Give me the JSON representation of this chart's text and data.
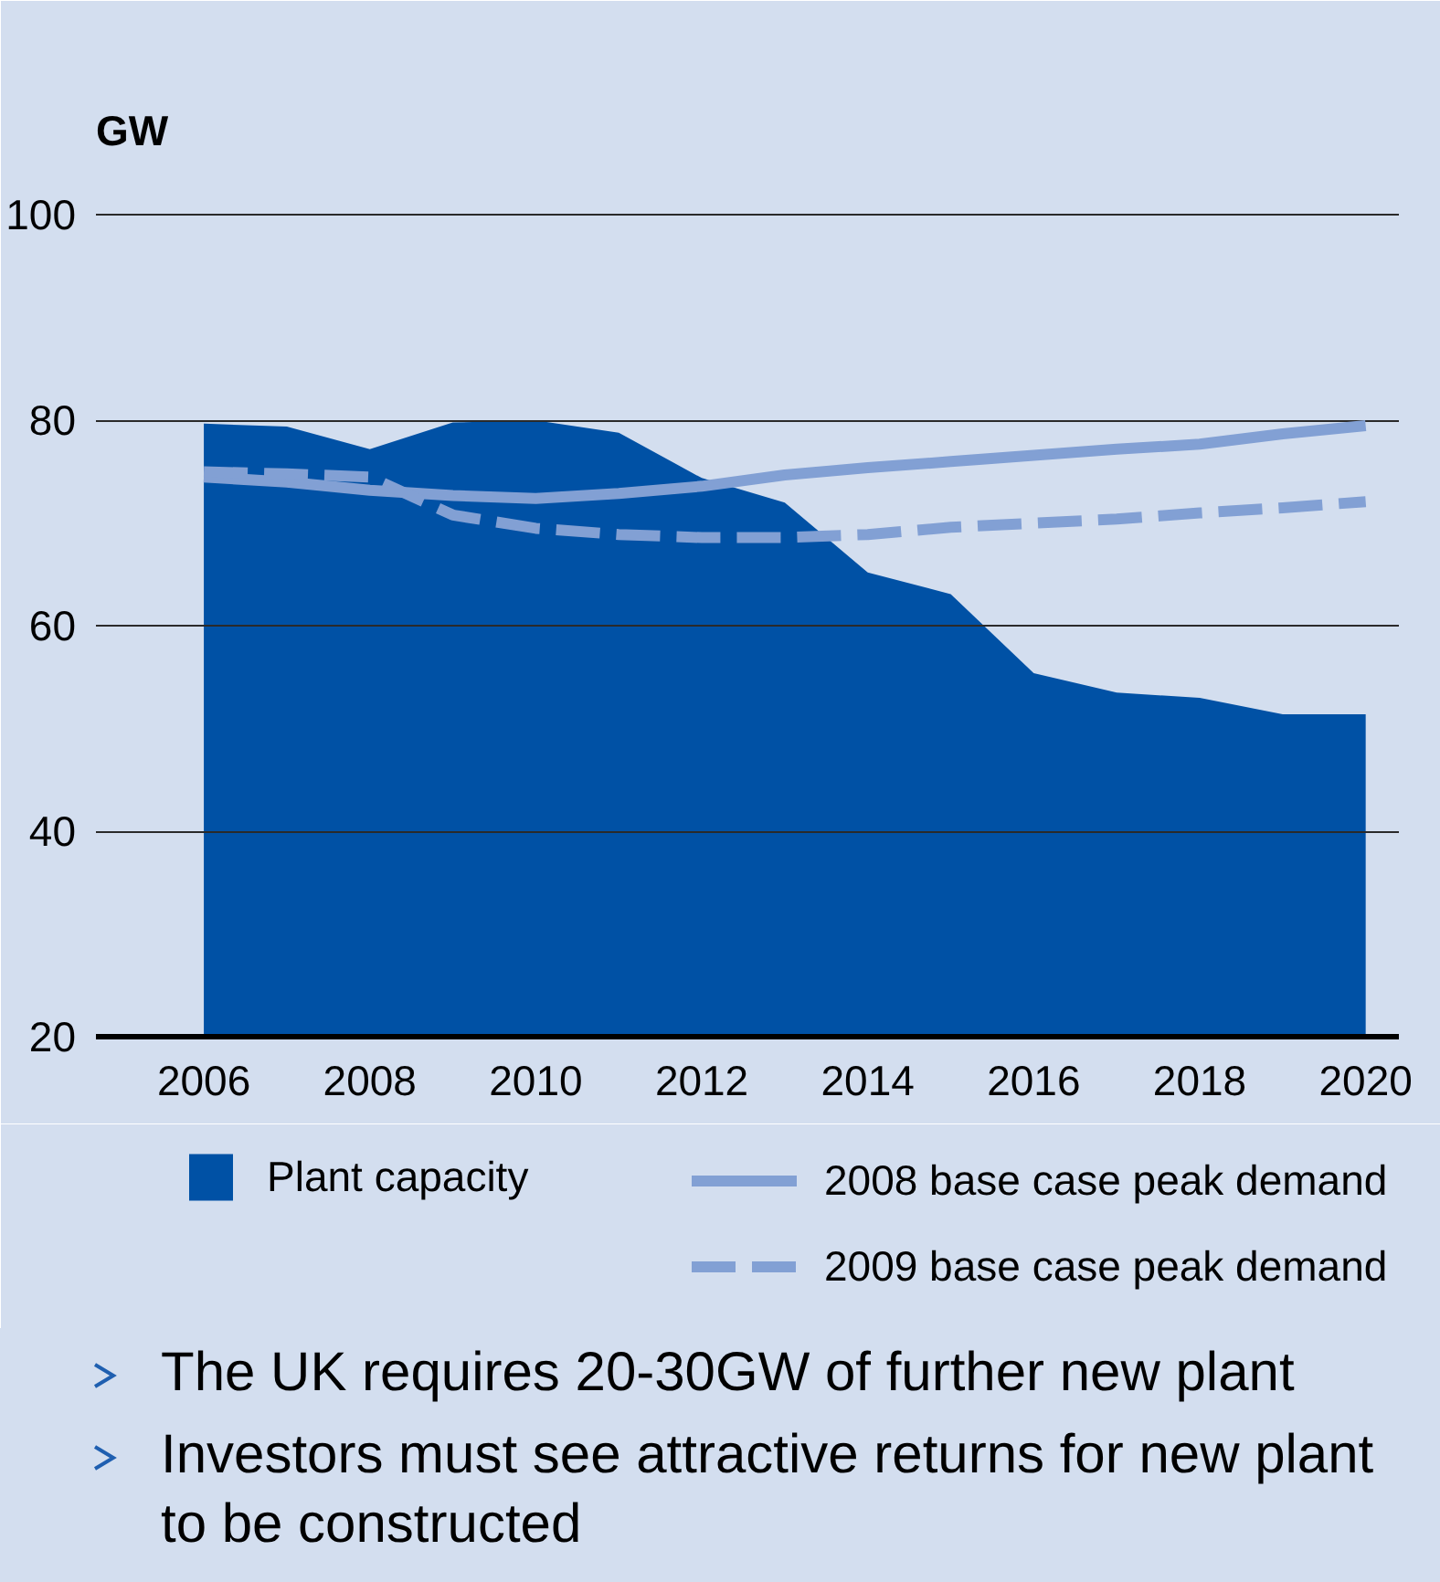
{
  "chart_data": {
    "type": "area",
    "ylabel": "GW",
    "x": [
      2006,
      2007,
      2008,
      2009,
      2010,
      2011,
      2012,
      2013,
      2014,
      2015,
      2016,
      2017,
      2018,
      2019,
      2020
    ],
    "series": [
      {
        "name": "Plant capacity",
        "color": "#0051a5",
        "values": [
          79.7,
          79.4,
          77.2,
          79.8,
          80.0,
          78.8,
          74.4,
          72.0,
          65.2,
          63.1,
          55.4,
          53.5,
          53.0,
          51.4,
          51.4
        ]
      },
      {
        "name": "2008 base case peak demand",
        "type": "line",
        "line_style": "solid",
        "color": "#82a0d4",
        "values": [
          74.5,
          74.0,
          73.2,
          72.7,
          72.4,
          72.9,
          73.6,
          74.7,
          75.4,
          76.0,
          76.6,
          77.2,
          77.7,
          78.7,
          79.5
        ]
      },
      {
        "name": "2009 base case peak demand",
        "type": "line",
        "line_style": "dashed",
        "color": "#82a0d4",
        "values": [
          75.0,
          74.8,
          74.5,
          70.8,
          69.5,
          68.9,
          68.6,
          68.6,
          68.9,
          69.6,
          70.0,
          70.4,
          71.0,
          71.5,
          72.1
        ]
      }
    ],
    "xlim": [
      2004.7,
      2020.4
    ],
    "xticks": [
      2006,
      2008,
      2010,
      2012,
      2014,
      2016,
      2018,
      2020
    ],
    "ylim": [
      20,
      102
    ],
    "yticks": [
      20,
      40,
      60,
      80,
      100
    ],
    "grid": "y",
    "legend": "bottom",
    "annotations": [
      "The UK requires 20-30GW of further new plant",
      "Investors must see attractive returns for new plant to be constructed"
    ]
  }
}
